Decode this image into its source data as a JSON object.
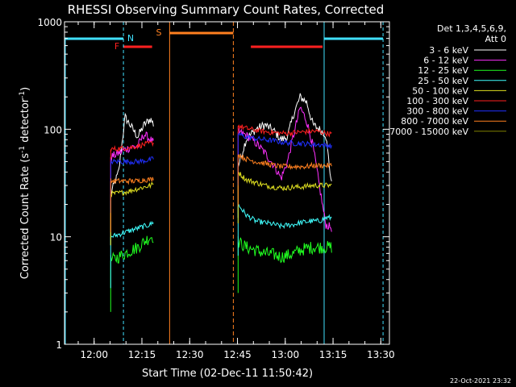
{
  "chart_data": {
    "type": "line",
    "title": "RHESSI Observing Summary Count Rates, Corrected",
    "xlabel": "Start Time (02-Dec-11 11:50:42)",
    "ylabel_main": "Corrected Count Rate (s",
    "ylabel_sup1": "-1",
    "ylabel_mid": " detector",
    "ylabel_sup2": "-1",
    "ylabel_end": ")",
    "y_scale": "log",
    "ylim": [
      1,
      1000
    ],
    "xlim_minutes": [
      0,
      102
    ],
    "x_ticks": [
      {
        "minute": 9.3,
        "label": "12:00"
      },
      {
        "minute": 24.3,
        "label": "12:15"
      },
      {
        "minute": 39.3,
        "label": "12:30"
      },
      {
        "minute": 54.3,
        "label": "12:45"
      },
      {
        "minute": 69.3,
        "label": "13:00"
      },
      {
        "minute": 84.3,
        "label": "13:15"
      },
      {
        "minute": 99.3,
        "label": "13:30"
      }
    ],
    "y_ticks": [
      {
        "value": 1,
        "label": "1"
      },
      {
        "value": 10,
        "label": "10"
      },
      {
        "value": 100,
        "label": "100"
      },
      {
        "value": 1000,
        "label": "1000"
      }
    ],
    "legend_header_1": "Det 1,3,4,5,6,9,",
    "legend_header_2": "Att 0",
    "legend_position": "right",
    "timestamp": "22-Oct-2021 23:32",
    "markers": [
      {
        "label": "F",
        "color": "#ff2020"
      },
      {
        "label": "N",
        "color": "#40e0ff"
      },
      {
        "label": "S",
        "color": "#ff8020"
      }
    ],
    "night_intervals": [
      [
        0,
        18.5
      ],
      [
        81.5,
        100
      ]
    ],
    "saa_intervals": [
      [
        33,
        53
      ]
    ],
    "flare_intervals": [
      [
        18.5,
        27.5
      ],
      [
        58.5,
        81
      ]
    ],
    "data_gaps": [
      [
        28,
        54
      ]
    ],
    "series": [
      {
        "name": "3 - 6 keV",
        "color": "#ffffff",
        "seg1": [
          [
            14.5,
            25
          ],
          [
            17,
            40
          ],
          [
            19,
            130
          ],
          [
            21,
            105
          ],
          [
            23,
            85
          ],
          [
            25,
            110
          ],
          [
            27,
            125
          ],
          [
            28,
            110
          ]
        ],
        "seg2": [
          [
            54.5,
            45
          ],
          [
            57,
            80
          ],
          [
            60,
            100
          ],
          [
            63,
            110
          ],
          [
            66,
            95
          ],
          [
            68,
            80
          ],
          [
            70,
            85
          ],
          [
            72,
            140
          ],
          [
            74,
            200
          ],
          [
            76,
            180
          ],
          [
            78,
            110
          ],
          [
            80,
            100
          ],
          [
            82,
            90
          ],
          [
            84,
            28
          ]
        ]
      },
      {
        "name": "6 - 12 keV",
        "color": "#ff30ff",
        "seg1": [
          [
            14.5,
            55
          ],
          [
            17,
            60
          ],
          [
            19,
            65
          ],
          [
            21,
            68
          ],
          [
            23,
            70
          ],
          [
            25,
            90
          ],
          [
            27,
            80
          ],
          [
            28,
            75
          ]
        ],
        "seg2": [
          [
            54.5,
            95
          ],
          [
            57,
            88
          ],
          [
            60,
            75
          ],
          [
            63,
            60
          ],
          [
            66,
            45
          ],
          [
            68,
            35
          ],
          [
            70,
            50
          ],
          [
            72,
            90
          ],
          [
            74,
            160
          ],
          [
            76,
            120
          ],
          [
            78,
            70
          ],
          [
            80,
            30
          ],
          [
            82,
            13
          ],
          [
            84,
            12
          ]
        ]
      },
      {
        "name": "12 - 25 keV",
        "color": "#20ff20",
        "seg1": [
          [
            14.5,
            6
          ],
          [
            17,
            6.5
          ],
          [
            19,
            7
          ],
          [
            21,
            7.5
          ],
          [
            23,
            8
          ],
          [
            25,
            9
          ],
          [
            27,
            10
          ],
          [
            28,
            10
          ]
        ],
        "seg2": [
          [
            54.5,
            9
          ],
          [
            57,
            8
          ],
          [
            60,
            7.5
          ],
          [
            63,
            7
          ],
          [
            66,
            6.8
          ],
          [
            68,
            6.5
          ],
          [
            70,
            6.7
          ],
          [
            72,
            7
          ],
          [
            74,
            7.5
          ],
          [
            76,
            7.8
          ],
          [
            78,
            8
          ],
          [
            80,
            8
          ],
          [
            82,
            8
          ],
          [
            84,
            8
          ]
        ]
      },
      {
        "name": "25 - 50 keV",
        "color": "#40ffff",
        "seg1": [
          [
            14.5,
            10
          ],
          [
            17,
            10.5
          ],
          [
            19,
            11
          ],
          [
            21,
            11.5
          ],
          [
            23,
            12
          ],
          [
            25,
            12.5
          ],
          [
            27,
            13
          ],
          [
            28,
            14
          ]
        ],
        "seg2": [
          [
            54.5,
            20
          ],
          [
            57,
            16
          ],
          [
            60,
            14
          ],
          [
            63,
            13.5
          ],
          [
            66,
            13
          ],
          [
            68,
            12.5
          ],
          [
            70,
            12.8
          ],
          [
            72,
            13
          ],
          [
            74,
            13.5
          ],
          [
            76,
            13.8
          ],
          [
            78,
            14
          ],
          [
            80,
            14
          ],
          [
            82,
            15
          ],
          [
            84,
            15
          ]
        ]
      },
      {
        "name": "50 - 100 keV",
        "color": "#e0e020",
        "seg1": [
          [
            14.5,
            25
          ],
          [
            17,
            25.5
          ],
          [
            19,
            26
          ],
          [
            21,
            27
          ],
          [
            23,
            28
          ],
          [
            25,
            29
          ],
          [
            27,
            30
          ],
          [
            28,
            31
          ]
        ],
        "seg2": [
          [
            54.5,
            40
          ],
          [
            57,
            34
          ],
          [
            60,
            32
          ],
          [
            63,
            30
          ],
          [
            66,
            29
          ],
          [
            68,
            28.5
          ],
          [
            70,
            28.5
          ],
          [
            72,
            29
          ],
          [
            74,
            29
          ],
          [
            76,
            29.5
          ],
          [
            78,
            30
          ],
          [
            80,
            30
          ],
          [
            82,
            30
          ],
          [
            84,
            30
          ]
        ]
      },
      {
        "name": "100 - 300 keV",
        "color": "#ff2020",
        "seg1": [
          [
            14.5,
            65
          ],
          [
            17,
            66
          ],
          [
            19,
            67
          ],
          [
            21,
            68
          ],
          [
            23,
            70
          ],
          [
            25,
            72
          ],
          [
            27,
            74
          ],
          [
            28,
            75
          ]
        ],
        "seg2": [
          [
            54.5,
            108
          ],
          [
            57,
            102
          ],
          [
            60,
            98
          ],
          [
            63,
            95
          ],
          [
            66,
            93
          ],
          [
            68,
            92
          ],
          [
            70,
            92
          ],
          [
            72,
            93
          ],
          [
            74,
            94
          ],
          [
            76,
            95
          ],
          [
            78,
            96
          ],
          [
            80,
            95
          ],
          [
            82,
            92
          ],
          [
            84,
            90
          ]
        ]
      },
      {
        "name": "300 - 800 keV",
        "color": "#2030ff",
        "seg1": [
          [
            14.5,
            50
          ],
          [
            17,
            50
          ],
          [
            19,
            50
          ],
          [
            21,
            50
          ],
          [
            23,
            50
          ],
          [
            25,
            51
          ],
          [
            27,
            52
          ],
          [
            28,
            53
          ]
        ],
        "seg2": [
          [
            54.5,
            90
          ],
          [
            57,
            85
          ],
          [
            60,
            82
          ],
          [
            63,
            80
          ],
          [
            66,
            78
          ],
          [
            68,
            76
          ],
          [
            70,
            75
          ],
          [
            72,
            74
          ],
          [
            74,
            74
          ],
          [
            76,
            73
          ],
          [
            78,
            72
          ],
          [
            80,
            72
          ],
          [
            82,
            71
          ],
          [
            84,
            70
          ]
        ]
      },
      {
        "name": "800 - 7000 keV",
        "color": "#ff8020",
        "seg1": [
          [
            14.5,
            33
          ],
          [
            17,
            33
          ],
          [
            19,
            33
          ],
          [
            21,
            33
          ],
          [
            23,
            33
          ],
          [
            25,
            34
          ],
          [
            27,
            34
          ],
          [
            28,
            35
          ]
        ],
        "seg2": [
          [
            54.5,
            58
          ],
          [
            57,
            53
          ],
          [
            60,
            50
          ],
          [
            63,
            48
          ],
          [
            66,
            46
          ],
          [
            68,
            45
          ],
          [
            70,
            45
          ],
          [
            72,
            45
          ],
          [
            74,
            45
          ],
          [
            76,
            45
          ],
          [
            78,
            46
          ],
          [
            80,
            46
          ],
          [
            82,
            46
          ],
          [
            84,
            46
          ]
        ]
      },
      {
        "name": "7000 - 15000 keV",
        "color": "#808000",
        "seg1": [],
        "seg2": []
      }
    ]
  }
}
